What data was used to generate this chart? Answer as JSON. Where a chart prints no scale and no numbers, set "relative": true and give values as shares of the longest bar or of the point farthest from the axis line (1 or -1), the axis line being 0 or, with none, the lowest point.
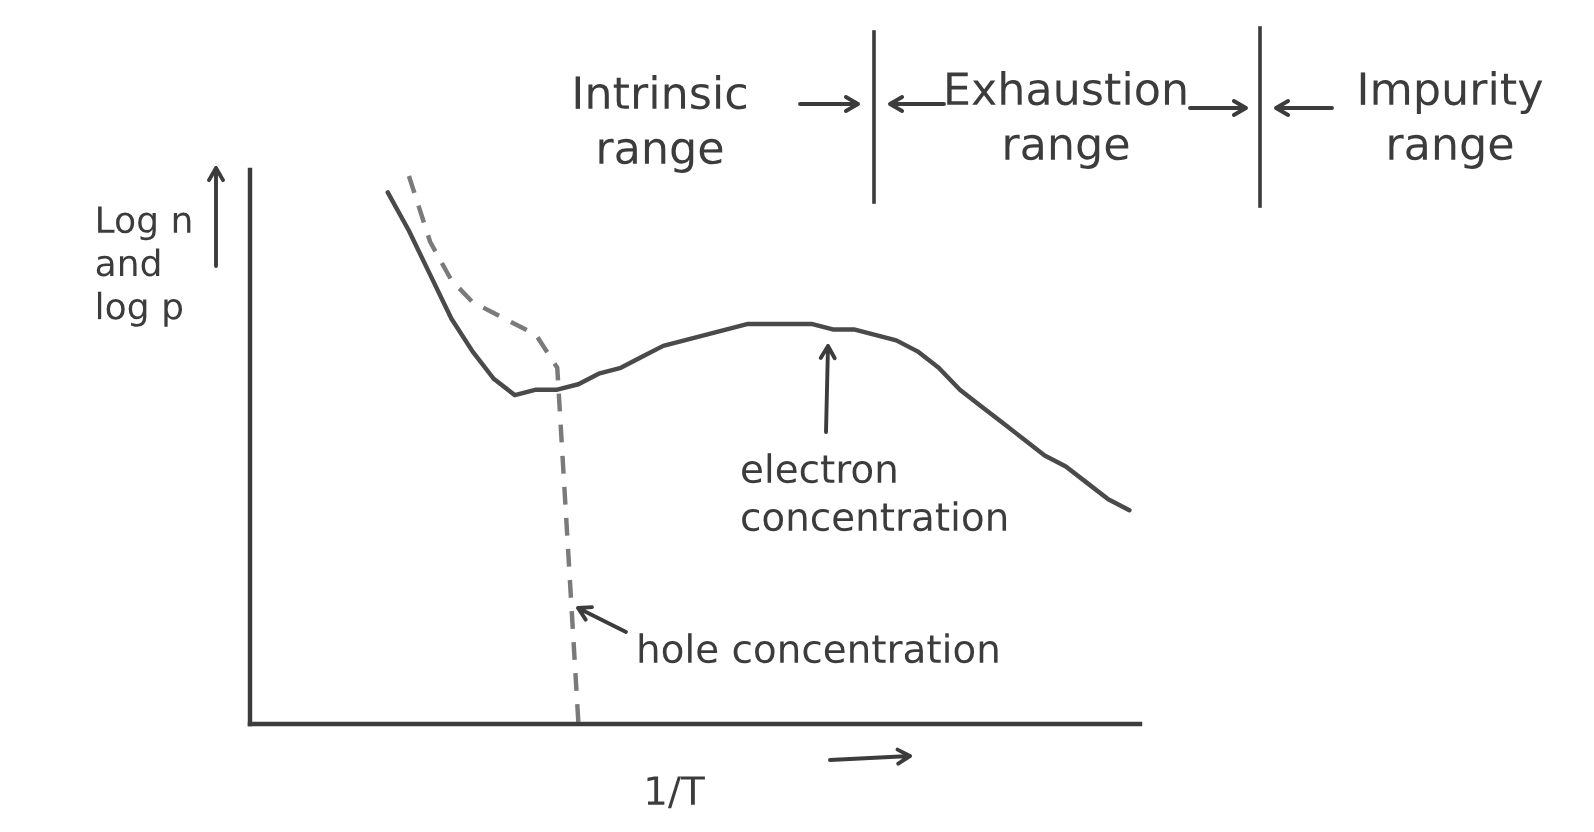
{
  "chart_data": {
    "type": "line",
    "relative": true,
    "categories": [
      null,
      null,
      null,
      null,
      null,
      null,
      null,
      null,
      null,
      null,
      null,
      null,
      null,
      null,
      null,
      null,
      null,
      null,
      null,
      null,
      null,
      null,
      null,
      null,
      null,
      null,
      null,
      null,
      null,
      null,
      null,
      null,
      null,
      null,
      null,
      null,
      null,
      null,
      null,
      null,
      null,
      null
    ],
    "xlabel": "1/T",
    "ylabel": "Log n\nand\nlog p",
    "annotations": [
      "Intrinsic\nrange",
      "Exhaustion\nrange",
      "Impurity\nrange",
      "electron\nconcentration",
      "hole concentration"
    ],
    "series": [
      {
        "color": "#4a4a4a",
        "line_style": "solid",
        "values": [
          null,
          null,
          null,
          null,
          null,
          null,
          0.97,
          0.9,
          0.82,
          0.74,
          0.68,
          0.63,
          0.6,
          0.61,
          0.61,
          0.62,
          0.64,
          0.65,
          0.67,
          0.69,
          0.7,
          0.71,
          0.72,
          0.73,
          0.73,
          0.73,
          0.73,
          0.72,
          0.72,
          0.71,
          0.7,
          0.68,
          0.65,
          0.61,
          0.58,
          0.55,
          0.52,
          0.49,
          0.47,
          0.44,
          0.41,
          0.39
        ]
      },
      {
        "color": "#7a7a7a",
        "line_style": "dashed",
        "values": [
          null,
          null,
          null,
          null,
          null,
          null,
          null,
          1.0,
          0.88,
          0.81,
          0.77,
          0.75,
          0.73,
          0.71,
          0.65,
          0.0,
          null,
          null,
          null,
          null,
          null,
          null,
          null,
          null,
          null,
          null,
          null,
          null,
          null,
          null,
          null,
          null,
          null,
          null,
          null,
          null,
          null,
          null,
          null,
          null,
          null,
          null
        ]
      }
    ]
  }
}
